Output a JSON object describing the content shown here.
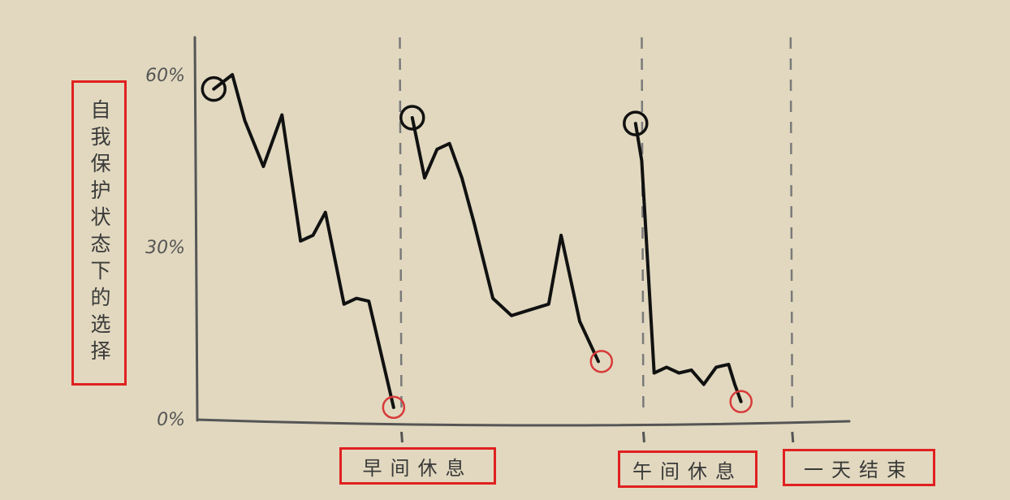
{
  "chart_data": {
    "type": "line",
    "ylabel": "自我保护状态下的选择",
    "ylim": [
      0,
      60
    ],
    "yticks": [
      "0%",
      "30%",
      "60%"
    ],
    "ytick_values": [
      0,
      30,
      60
    ],
    "xlim": [
      0,
      100
    ],
    "markers": [
      {
        "label": "早间休息",
        "x": 32
      },
      {
        "label": "午间休息",
        "x": 71
      },
      {
        "label": "一天结束",
        "x": 95
      }
    ],
    "series": [
      {
        "values": [
          [
            2,
            57.5
          ],
          [
            5,
            60
          ],
          [
            7,
            52
          ],
          [
            10,
            44
          ],
          [
            12,
            50
          ],
          [
            13,
            53
          ],
          [
            16,
            31
          ],
          [
            18,
            32
          ],
          [
            20,
            36
          ],
          [
            23,
            20
          ],
          [
            25,
            21
          ],
          [
            27,
            20.5
          ],
          [
            31,
            2
          ]
        ],
        "start_circle": [
          2,
          57.5
        ],
        "end_circle": [
          31,
          2
        ]
      },
      {
        "values": [
          [
            34,
            52.5
          ],
          [
            36,
            42
          ],
          [
            38,
            47
          ],
          [
            40,
            48
          ],
          [
            42,
            42
          ],
          [
            44,
            34
          ],
          [
            47,
            21
          ],
          [
            50,
            18
          ],
          [
            53,
            19
          ],
          [
            56,
            20
          ],
          [
            58,
            32
          ],
          [
            61,
            17
          ],
          [
            64,
            10
          ]
        ],
        "start_circle": [
          34,
          52.5
        ],
        "end_circle": [
          64.5,
          10
        ]
      },
      {
        "values": [
          [
            70,
            51.5
          ],
          [
            71,
            45
          ],
          [
            73,
            8
          ],
          [
            75,
            9
          ],
          [
            77,
            8
          ],
          [
            79,
            8.5
          ],
          [
            81,
            6
          ],
          [
            83,
            9
          ],
          [
            85,
            9.5
          ],
          [
            86,
            6
          ],
          [
            87,
            3
          ]
        ],
        "start_circle": [
          70,
          51.5
        ],
        "end_circle": [
          87,
          3
        ]
      }
    ]
  }
}
